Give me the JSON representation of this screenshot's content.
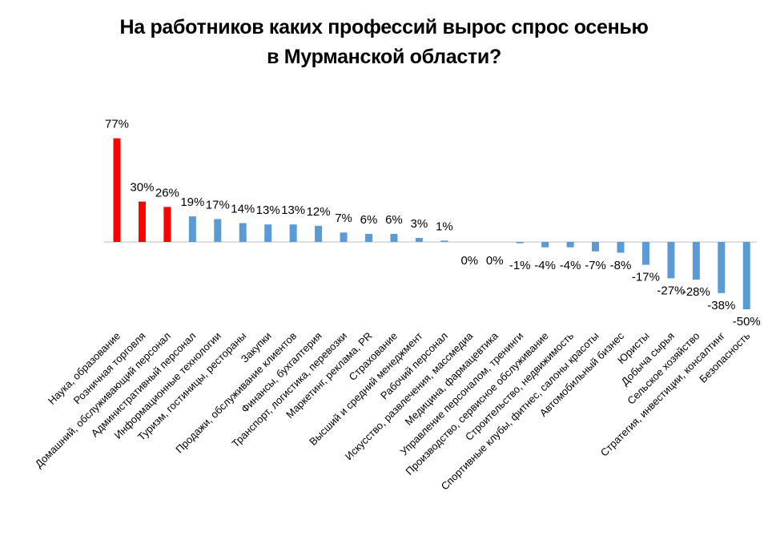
{
  "chart_data": {
    "type": "bar",
    "title_lines": [
      "На работников каких профессий вырос спрос осенью",
      "в Мурманской области?"
    ],
    "xlabel": "",
    "ylabel": "",
    "ylim": [
      -50,
      77
    ],
    "grid": false,
    "legend": "none",
    "highlight_color": "#ff0000",
    "bar_color": "#5b9bd5",
    "axis_color": "#bfbfbf",
    "categories": [
      "Наука, образование",
      "Розничная торговля",
      "Домашний, обслуживающий персонал",
      "Административный персонал",
      "Информационные технологии",
      "Туризм, гостиницы, рестораны",
      "Закупки",
      "Продажи, обслуживание клиентов",
      "Финансы, бухгалтерия",
      "Транспорт, логистика, перевозки",
      "Маркетинг, реклама, PR",
      "Страхование",
      "Высший и средний менеджмент",
      "Рабочий персонал",
      "Искусство, развлечения, массмедиа",
      "Медицина, фармацевтика",
      "Управление персоналом, тренинги",
      "Производство, сервисное обслуживание",
      "Строительство, недвижимость",
      "Спортивные клубы, фитнес, салоны красоты",
      "Автомобильный бизнес",
      "Юристы",
      "Добыча сырья",
      "Сельское хозяйство",
      "Стратегия, инвестиции, консалтинг",
      "Безопасность"
    ],
    "values": [
      77,
      30,
      26,
      19,
      17,
      14,
      13,
      13,
      12,
      7,
      6,
      6,
      3,
      1,
      0,
      0,
      -1,
      -4,
      -4,
      -7,
      -8,
      -17,
      -27,
      -28,
      -38,
      -50
    ],
    "value_labels": [
      "77%",
      "30%",
      "26%",
      "19%",
      "17%",
      "14%",
      "13%",
      "13%",
      "12%",
      "7%",
      "6%",
      "6%",
      "3%",
      "1%",
      "0%",
      "0%",
      "-1%",
      "-4%",
      "-4%",
      "-7%",
      "-8%",
      "-17%",
      "-27%",
      "-28%",
      "-38%",
      "-50%"
    ],
    "highlighted_count": 3
  }
}
